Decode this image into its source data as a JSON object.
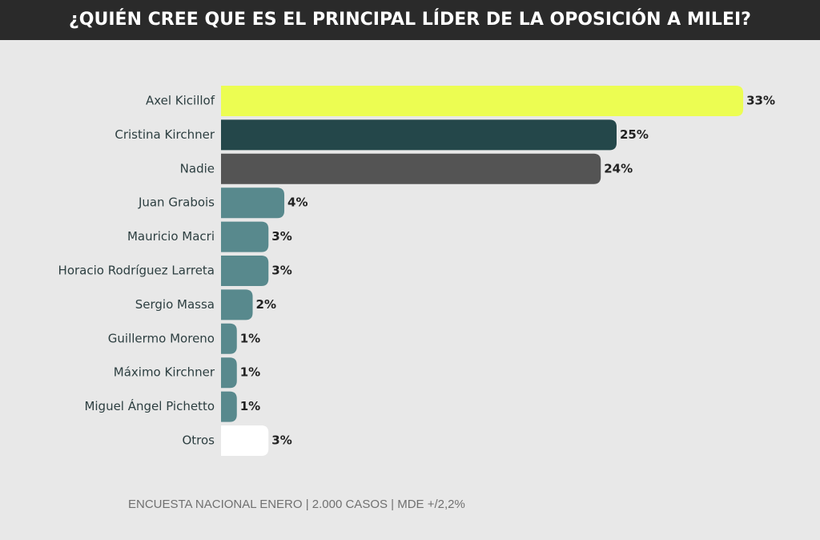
{
  "chart_data": {
    "type": "bar",
    "orientation": "horizontal",
    "title": "¿QUIÉN CREE QUE ES EL PRINCIPAL LÍDER DE LA OPOSICIÓN A MILEI?",
    "categories": [
      "Axel Kicillof",
      "Cristina Kirchner",
      "Nadie",
      "Juan Grabois",
      "Mauricio Macri",
      "Horacio Rodríguez Larreta",
      "Sergio Massa",
      "Guillermo Moreno",
      "Máximo Kirchner",
      "Miguel Ángel Pichetto",
      "Otros"
    ],
    "values": [
      33,
      25,
      24,
      4,
      3,
      3,
      2,
      1,
      1,
      1,
      3
    ],
    "value_labels": [
      "33%",
      "25%",
      "24%",
      "4%",
      "3%",
      "3%",
      "2%",
      "1%",
      "1%",
      "1%",
      "3%"
    ],
    "colors": [
      "#ecfd52",
      "#24474a",
      "#545454",
      "#58898d",
      "#58898d",
      "#58898d",
      "#58898d",
      "#58898d",
      "#58898d",
      "#58898d",
      "#ffffff"
    ],
    "source": "ENCUESTA NACIONAL ENERO | 2.000 CASOS | MDE +/2,2%"
  }
}
